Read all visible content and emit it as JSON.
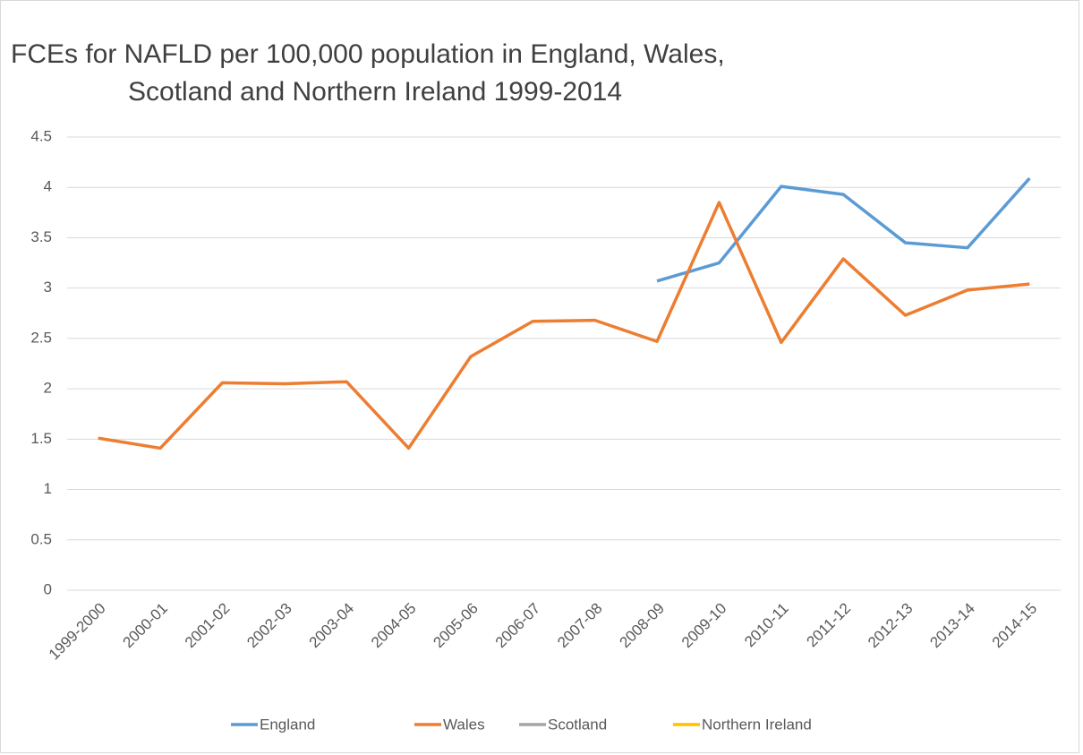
{
  "chart_data": {
    "type": "line",
    "title": [
      "FCEs for NAFLD per 100,000 population in England, Wales,",
      "Scotland and Northern Ireland 1999-2014"
    ],
    "categories": [
      "1999-2000",
      "2000-01",
      "2001-02",
      "2002-03",
      "2003-04",
      "2004-05",
      "2005-06",
      "2006-07",
      "2007-08",
      "2008-09",
      "2009-10",
      "2010-11",
      "2011-12",
      "2012-13",
      "2013-14",
      "2014-15"
    ],
    "series": [
      {
        "name": "England",
        "color": "#5b9bd5",
        "values": [
          null,
          null,
          null,
          null,
          null,
          null,
          null,
          null,
          null,
          3.07,
          3.25,
          4.01,
          3.93,
          3.45,
          3.4,
          4.09
        ]
      },
      {
        "name": "Wales",
        "color": "#ed7d31",
        "values": [
          1.51,
          1.41,
          2.06,
          2.05,
          2.07,
          1.41,
          2.32,
          2.67,
          2.68,
          2.47,
          3.85,
          2.46,
          3.29,
          2.73,
          2.98,
          3.04
        ]
      },
      {
        "name": "Scotland",
        "color": "#a5a5a5",
        "values": [
          null,
          null,
          null,
          null,
          null,
          null,
          null,
          null,
          null,
          null,
          null,
          null,
          null,
          null,
          null,
          null
        ]
      },
      {
        "name": "Northern Ireland",
        "color": "#ffc000",
        "values": [
          null,
          null,
          null,
          null,
          null,
          null,
          null,
          null,
          null,
          null,
          null,
          null,
          null,
          null,
          null,
          null
        ]
      }
    ],
    "ylim": [
      0,
      4.5
    ],
    "yticks": [
      0,
      0.5,
      1,
      1.5,
      2,
      2.5,
      3,
      3.5,
      4,
      4.5
    ],
    "grid": true,
    "legend": "bottom"
  }
}
